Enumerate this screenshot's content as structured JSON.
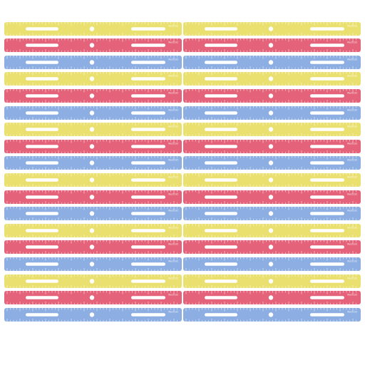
{
  "brand": "Westcott",
  "columns": 2,
  "colors": {
    "yellow": "#e9de63",
    "red": "#e2566f",
    "blue": "#83a8e0"
  },
  "rulers": [
    "yellow",
    "red",
    "blue",
    "yellow",
    "red",
    "blue",
    "yellow",
    "red",
    "blue",
    "yellow",
    "red",
    "blue",
    "yellow",
    "red",
    "blue",
    "yellow",
    "red",
    "blue"
  ]
}
